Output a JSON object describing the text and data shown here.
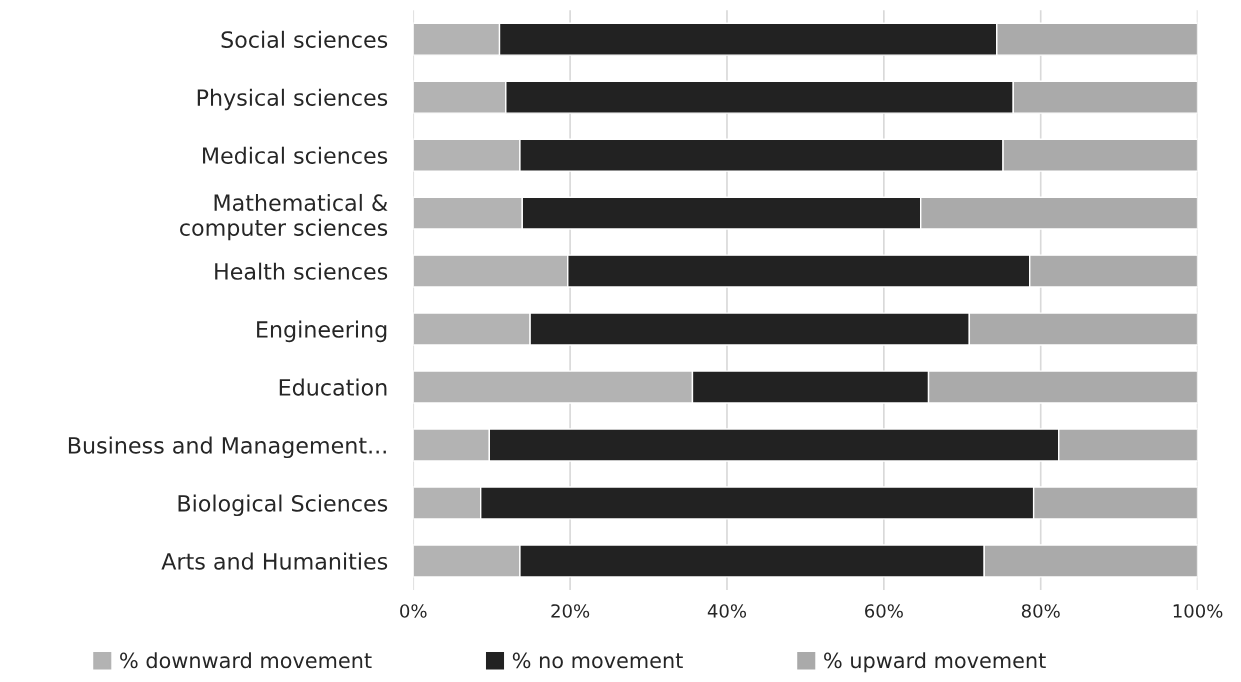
{
  "chart_data": {
    "type": "bar",
    "orientation": "horizontal",
    "stacked": true,
    "categories": [
      "Social sciences",
      "Physical sciences",
      "Medical sciences",
      "Mathematical &\ncomputer sciences",
      "Health sciences",
      "Engineering",
      "Education",
      "Business and Management...",
      "Biological Sciences",
      "Arts and Humanities"
    ],
    "series": [
      {
        "name": "% downward movement",
        "color": "#b3b3b3",
        "values": [
          11.0,
          11.8,
          13.6,
          13.9,
          19.7,
          14.9,
          35.6,
          9.7,
          8.6,
          13.6
        ]
      },
      {
        "name": "% no movement",
        "color": "#222222",
        "values": [
          63.4,
          64.7,
          61.6,
          50.8,
          58.9,
          56.0,
          30.1,
          72.6,
          70.5,
          59.2
        ]
      },
      {
        "name": "% upward movement",
        "color": "#aaaaaa",
        "values": [
          25.6,
          23.5,
          24.8,
          35.3,
          21.4,
          29.1,
          34.3,
          17.7,
          20.9,
          27.2
        ]
      }
    ],
    "xlim": [
      0,
      100
    ],
    "xticks": [
      {
        "value": 0,
        "label": "0%"
      },
      {
        "value": 20,
        "label": "20%"
      },
      {
        "value": 40,
        "label": "40%"
      },
      {
        "value": 60,
        "label": "60%"
      },
      {
        "value": 80,
        "label": "80%"
      },
      {
        "value": 100,
        "label": "100%"
      }
    ],
    "grid": "x",
    "legend": "bottom"
  }
}
